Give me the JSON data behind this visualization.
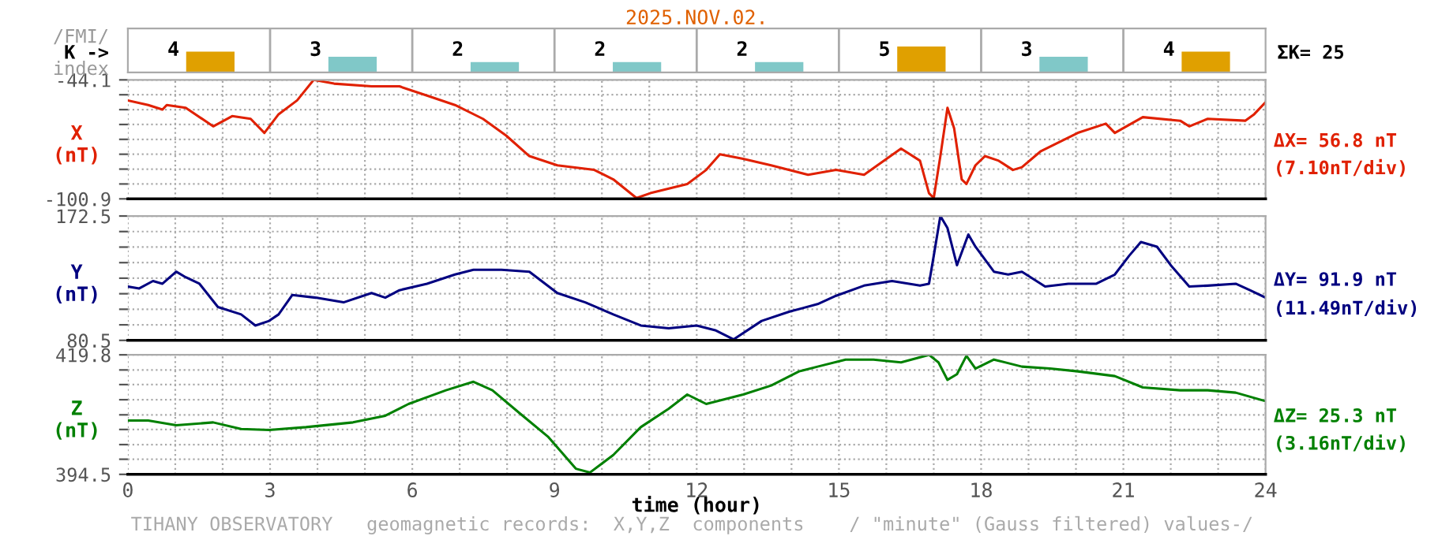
{
  "chart_data": [
    {
      "type": "bar",
      "title": "2025.NOV.02.",
      "categories": [
        null,
        null,
        null,
        null,
        null,
        null,
        null,
        null
      ],
      "values": [
        4,
        3,
        2,
        2,
        2,
        5,
        3,
        4
      ],
      "colors": [
        "#e0a000",
        "#80c8c8",
        "#80c8c8",
        "#80c8c8",
        "#80c8c8",
        "#e0a000",
        "#80c8c8",
        "#e0a000"
      ],
      "data_labels": true,
      "annotations": [
        "/FMI/",
        "K ->",
        "index",
        "ΣK= 25"
      ]
    },
    {
      "type": "line",
      "ylabel": "X\n(nT)",
      "xlim": [
        0,
        24
      ],
      "ylim": [
        -100.9,
        -44.1
      ],
      "grid": true,
      "tick_labels": "y",
      "xticks": [
        0,
        {
          "value": 1,
          "label": null
        },
        {
          "value": 2,
          "label": null
        },
        3,
        {
          "value": 4,
          "label": null
        },
        {
          "value": 5,
          "label": null
        },
        6,
        {
          "value": 7,
          "label": null
        },
        {
          "value": 8,
          "label": null
        },
        9,
        {
          "value": 10,
          "label": null
        },
        {
          "value": 11,
          "label": null
        },
        12,
        {
          "value": 13,
          "label": null
        },
        {
          "value": 14,
          "label": null
        },
        15,
        {
          "value": 16,
          "label": null
        },
        {
          "value": 17,
          "label": null
        },
        18,
        {
          "value": 19,
          "label": null
        },
        {
          "value": 20,
          "label": null
        },
        21,
        {
          "value": 22,
          "label": null
        },
        {
          "value": 23,
          "label": null
        },
        24
      ],
      "yticks": [
        -100.9,
        {
          "value": -93.8,
          "label": null
        },
        {
          "value": -86.7,
          "label": null
        },
        {
          "value": -79.6,
          "label": null
        },
        {
          "value": -72.5,
          "label": null
        },
        {
          "value": -65.4,
          "label": null
        },
        {
          "value": -58.3,
          "label": null
        },
        {
          "value": -51.2,
          "label": null
        },
        -44.1
      ],
      "x": [
        0,
        0.43,
        0.73,
        0.82,
        1.22,
        1.8,
        2.2,
        2.59,
        2.88,
        3.18,
        3.57,
        3.92,
        4.35,
        5.14,
        5.73,
        6.31,
        6.9,
        7.49,
        7.98,
        8.47,
        9.06,
        9.84,
        10.24,
        10.73,
        11.02,
        11.41,
        11.8,
        12.2,
        12.49,
        12.98,
        13.57,
        14.35,
        14.94,
        15.53,
        16.31,
        16.71,
        16.9,
        17.0,
        17.14,
        17.29,
        17.43,
        17.59,
        17.69,
        17.88,
        18.08,
        18.37,
        18.67,
        18.86,
        19.25,
        20.04,
        20.63,
        20.82,
        21.41,
        22.2,
        22.39,
        22.78,
        23.57,
        23.76,
        24.0
      ],
      "series": [
        {
          "color": "#e02000",
          "values": [
            -53.9,
            -56.1,
            -58.3,
            -56.1,
            -57.4,
            -66.3,
            -61.4,
            -62.7,
            -69.4,
            -60.5,
            -53.9,
            -44.1,
            -45.9,
            -47.2,
            -47.2,
            -51.6,
            -56.1,
            -62.7,
            -70.7,
            -80.5,
            -84.9,
            -87.1,
            -91.6,
            -100.5,
            -98.2,
            -96.0,
            -93.8,
            -87.1,
            -79.6,
            -81.8,
            -84.9,
            -89.4,
            -87.1,
            -89.4,
            -76.9,
            -82.7,
            -98.2,
            -100.5,
            -80.5,
            -57.4,
            -67.2,
            -91.6,
            -93.8,
            -84.9,
            -80.5,
            -82.7,
            -87.1,
            -85.8,
            -78.3,
            -69.4,
            -65.0,
            -69.4,
            -61.9,
            -63.6,
            -66.3,
            -62.7,
            -63.6,
            -60.5,
            -54.8
          ]
        }
      ],
      "annotations": [
        "ΔX= 56.8 nT",
        "(7.10nT/div)"
      ]
    },
    {
      "type": "line",
      "ylabel": "Y\n(nT)",
      "xlim": [
        0,
        24
      ],
      "ylim": [
        80.5,
        172.5
      ],
      "grid": true,
      "tick_labels": "y",
      "xticks": [
        0,
        {
          "value": 1,
          "label": null
        },
        {
          "value": 2,
          "label": null
        },
        3,
        {
          "value": 4,
          "label": null
        },
        {
          "value": 5,
          "label": null
        },
        6,
        {
          "value": 7,
          "label": null
        },
        {
          "value": 8,
          "label": null
        },
        9,
        {
          "value": 10,
          "label": null
        },
        {
          "value": 11,
          "label": null
        },
        12,
        {
          "value": 13,
          "label": null
        },
        {
          "value": 14,
          "label": null
        },
        15,
        {
          "value": 16,
          "label": null
        },
        {
          "value": 17,
          "label": null
        },
        18,
        {
          "value": 19,
          "label": null
        },
        {
          "value": 20,
          "label": null
        },
        21,
        {
          "value": 22,
          "label": null
        },
        {
          "value": 23,
          "label": null
        },
        24
      ],
      "yticks": [
        80.5,
        {
          "value": 92.0,
          "label": null
        },
        {
          "value": 103.5,
          "label": null
        },
        {
          "value": 115.0,
          "label": null
        },
        {
          "value": 126.5,
          "label": null
        },
        {
          "value": 138.0,
          "label": null
        },
        {
          "value": 149.5,
          "label": null
        },
        {
          "value": 161.0,
          "label": null
        },
        172.5
      ],
      "x": [
        0,
        0.24,
        0.53,
        0.73,
        1.02,
        1.22,
        1.51,
        1.9,
        2.39,
        2.69,
        2.98,
        3.18,
        3.47,
        3.96,
        4.55,
        5.14,
        5.43,
        5.73,
        6.31,
        6.9,
        7.29,
        7.88,
        8.47,
        9.06,
        9.65,
        10.24,
        10.82,
        11.41,
        12.0,
        12.39,
        12.78,
        13.37,
        13.96,
        14.55,
        14.94,
        15.53,
        16.12,
        16.71,
        16.9,
        17.0,
        17.14,
        17.29,
        17.49,
        17.73,
        17.88,
        18.27,
        18.57,
        18.86,
        19.35,
        19.84,
        20.43,
        20.82,
        21.12,
        21.37,
        21.71,
        22.0,
        22.39,
        22.78,
        23.37,
        23.67,
        24.0
      ],
      "series": [
        {
          "color": "#000080",
          "values": [
            120.3,
            118.9,
            124.4,
            122.4,
            131.3,
            127.2,
            122.4,
            105.2,
            99.7,
            91.5,
            94.9,
            99.7,
            114.1,
            112.1,
            108.6,
            115.5,
            112.1,
            117.6,
            122.4,
            129.2,
            132.7,
            132.7,
            131.3,
            115.5,
            108.6,
            99.7,
            91.5,
            89.4,
            91.5,
            88.0,
            81.2,
            94.9,
            101.8,
            107.3,
            113.5,
            121.0,
            124.4,
            121.0,
            122.4,
            143.0,
            172.5,
            163.6,
            136.1,
            158.8,
            149.8,
            131.3,
            129.2,
            131.3,
            120.3,
            122.4,
            122.4,
            129.2,
            143.0,
            153.3,
            149.8,
            136.1,
            120.3,
            121.0,
            122.4,
            117.6,
            112.1
          ]
        }
      ],
      "annotations": [
        "ΔY= 91.9 nT",
        "(11.49nT/div)"
      ]
    },
    {
      "type": "line",
      "ylabel": "Z\n(nT)",
      "xlabel": "time (hour)",
      "xlim": [
        0,
        24
      ],
      "ylim": [
        394.5,
        419.8
      ],
      "grid": true,
      "xticks": [
        0,
        {
          "value": 1,
          "label": null
        },
        {
          "value": 2,
          "label": null
        },
        3,
        {
          "value": 4,
          "label": null
        },
        {
          "value": 5,
          "label": null
        },
        6,
        {
          "value": 7,
          "label": null
        },
        {
          "value": 8,
          "label": null
        },
        9,
        {
          "value": 10,
          "label": null
        },
        {
          "value": 11,
          "label": null
        },
        12,
        {
          "value": 13,
          "label": null
        },
        {
          "value": 14,
          "label": null
        },
        15,
        {
          "value": 16,
          "label": null
        },
        {
          "value": 17,
          "label": null
        },
        18,
        {
          "value": 19,
          "label": null
        },
        {
          "value": 20,
          "label": null
        },
        21,
        {
          "value": 22,
          "label": null
        },
        {
          "value": 23,
          "label": null
        },
        24
      ],
      "yticks": [
        394.5,
        {
          "value": 397.7,
          "label": null
        },
        {
          "value": 400.8,
          "label": null
        },
        {
          "value": 404.0,
          "label": null
        },
        {
          "value": 407.1,
          "label": null
        },
        {
          "value": 410.3,
          "label": null
        },
        {
          "value": 413.5,
          "label": null
        },
        {
          "value": 416.6,
          "label": null
        },
        419.8
      ],
      "x": [
        0,
        0.43,
        1.02,
        1.8,
        2.39,
        2.98,
        3.76,
        4.75,
        5.43,
        5.92,
        6.71,
        7.29,
        7.69,
        8.27,
        8.86,
        9.45,
        9.75,
        10.24,
        10.82,
        11.41,
        11.8,
        12.2,
        12.59,
        12.98,
        13.57,
        14.16,
        14.55,
        15.14,
        15.73,
        16.31,
        16.9,
        17.1,
        17.29,
        17.49,
        17.69,
        17.88,
        18.27,
        18.86,
        19.45,
        20.04,
        20.82,
        21.41,
        22.2,
        22.78,
        23.37,
        24.0
      ],
      "series": [
        {
          "color": "#008000",
          "values": [
            405.9,
            405.9,
            404.9,
            405.5,
            404.1,
            403.9,
            404.5,
            405.5,
            406.9,
            409.4,
            412.3,
            414.1,
            412.3,
            407.4,
            402.5,
            395.7,
            394.9,
            398.6,
            404.5,
            408.4,
            411.4,
            409.4,
            410.4,
            411.4,
            413.3,
            416.3,
            417.3,
            418.8,
            418.8,
            418.2,
            419.8,
            418.2,
            414.5,
            415.7,
            419.6,
            416.9,
            418.8,
            417.3,
            416.9,
            416.3,
            415.3,
            412.9,
            412.3,
            412.3,
            411.8,
            410.0
          ]
        }
      ],
      "annotations": [
        "ΔZ= 25.3 nT",
        "(3.16nT/div)",
        "TIHANY OBSERVATORY   geomagnetic records:  X,Y,Z  components    / \"minute\" (Gauss filtered) values-/"
      ]
    }
  ]
}
